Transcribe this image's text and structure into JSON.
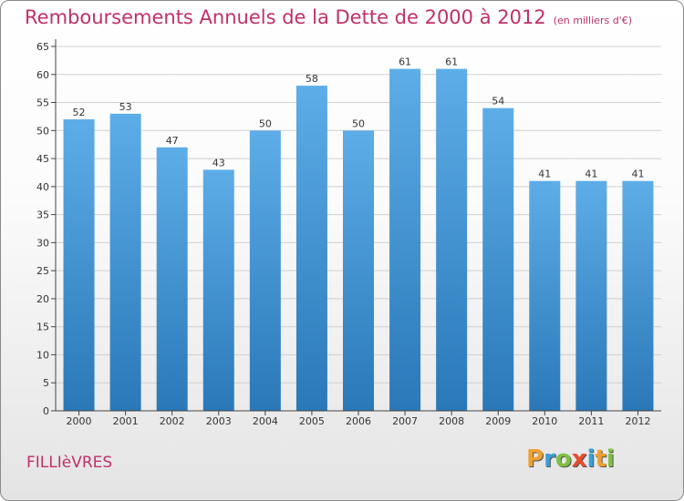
{
  "chart_data": {
    "type": "bar",
    "title": "Remboursements Annuels de la Dette de 2000 à 2012",
    "unit_label": "(en milliers d'€)",
    "categories": [
      "2000",
      "2001",
      "2002",
      "2003",
      "2004",
      "2005",
      "2006",
      "2007",
      "2008",
      "2009",
      "2010",
      "2011",
      "2012"
    ],
    "values": [
      52,
      53,
      47,
      43,
      50,
      58,
      50,
      61,
      61,
      54,
      41,
      41,
      41
    ],
    "ylim": [
      0,
      65
    ],
    "yticks": [
      0,
      5,
      10,
      15,
      20,
      25,
      30,
      35,
      40,
      45,
      50,
      55,
      60,
      65
    ],
    "xlabel": "",
    "ylabel": "",
    "bar_color_top": "#5dade8",
    "bar_color_bottom": "#2a78b8"
  },
  "commune": "FILLIèVRES",
  "brand": {
    "letters": [
      "P",
      "r",
      "o",
      "x",
      "i",
      "t",
      "i"
    ],
    "colors": [
      "#f0a030",
      "#3aa0d8",
      "#7cc242",
      "#e84e2e",
      "#3aa0d8",
      "#f0a030",
      "#7cc242"
    ]
  },
  "colors": {
    "title": "#c0306a",
    "grid": "#d0d0d0"
  }
}
